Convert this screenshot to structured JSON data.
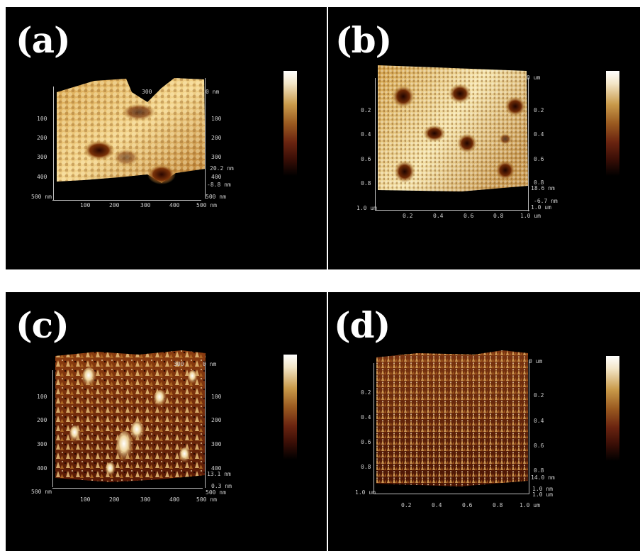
{
  "panels": {
    "a": {
      "label": "(a)",
      "left_ticks": [
        "100",
        "200",
        "300",
        "400",
        "500 nm"
      ],
      "right_ticks": [
        "0 nm",
        "100",
        "200",
        "300",
        "400"
      ],
      "top_tick": "300",
      "z_labels": [
        "20.2 nm",
        "-8.8 nm",
        "500 nm"
      ],
      "bottom_ticks": [
        "100",
        "200",
        "300",
        "400",
        "500 nm"
      ]
    },
    "b": {
      "label": "(b)",
      "left_ticks": [
        "0.2",
        "0.4",
        "0.6",
        "0.8",
        "1.0 um"
      ],
      "right_ticks": [
        "0 um",
        "0.2",
        "0.4",
        "0.6",
        "0.8"
      ],
      "z_labels": [
        "18.6 nm",
        "-6.7 nm",
        "1.0 um"
      ],
      "bottom_ticks": [
        "0.2",
        "0.4",
        "0.6",
        "0.8",
        "1.0 um"
      ]
    },
    "c": {
      "label": "(c)",
      "left_ticks": [
        "100",
        "200",
        "300",
        "400",
        "500 nm"
      ],
      "right_ticks": [
        "0 nm",
        "100",
        "200",
        "300",
        "400"
      ],
      "top_tick": "300",
      "z_labels": [
        "13.1 nm",
        "0.3 nm",
        "500 nm"
      ],
      "bottom_ticks": [
        "100",
        "200",
        "300",
        "400",
        "500 nm"
      ]
    },
    "d": {
      "label": "(d)",
      "left_ticks": [
        "0.2",
        "0.4",
        "0.6",
        "0.8",
        "1.0 um"
      ],
      "right_ticks": [
        "0 um",
        "0.2",
        "0.4",
        "0.6",
        "0.8"
      ],
      "z_labels": [
        "14.0 nm",
        "1.0 nm",
        "1.0 um"
      ],
      "bottom_ticks": [
        "0.2",
        "0.4",
        "0.6",
        "0.8",
        "1.0 um"
      ]
    }
  }
}
